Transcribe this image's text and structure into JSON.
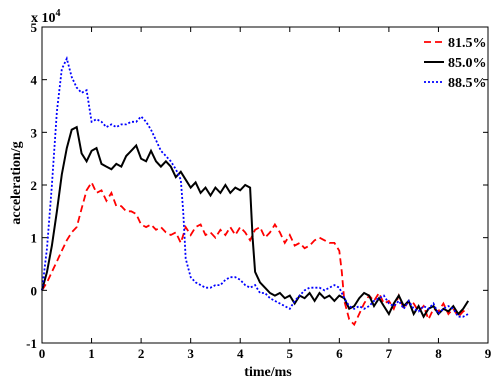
{
  "chart_data": {
    "type": "line",
    "xlabel": "time/ms",
    "ylabel": "acceleration/g",
    "multiplier": "x 10",
    "multiplier_exp": "4",
    "xlim": [
      0,
      9
    ],
    "ylim": [
      -1,
      5
    ],
    "xticks": [
      {
        "v": 0,
        "label": "0"
      },
      {
        "v": 1,
        "label": "1"
      },
      {
        "v": 2,
        "label": "2"
      },
      {
        "v": 3,
        "label": "3"
      },
      {
        "v": 4,
        "label": "4"
      },
      {
        "v": 5,
        "label": "5"
      },
      {
        "v": 6,
        "label": "6"
      },
      {
        "v": 7,
        "label": "7"
      },
      {
        "v": 8,
        "label": "8"
      },
      {
        "v": 9,
        "label": "9"
      }
    ],
    "yticks": [
      {
        "v": -1,
        "label": "-1"
      },
      {
        "v": 0,
        "label": "0"
      },
      {
        "v": 1,
        "label": "1"
      },
      {
        "v": 2,
        "label": "2"
      },
      {
        "v": 3,
        "label": "3"
      },
      {
        "v": 4,
        "label": "4"
      },
      {
        "v": 5,
        "label": "5"
      }
    ],
    "grid": false,
    "legend_position": "top-right",
    "series": [
      {
        "name": "81.5%",
        "color": "#ff0000",
        "dash": "dashed",
        "points": [
          [
            0,
            0
          ],
          [
            0.1,
            0.15
          ],
          [
            0.2,
            0.35
          ],
          [
            0.3,
            0.55
          ],
          [
            0.4,
            0.75
          ],
          [
            0.5,
            0.95
          ],
          [
            0.6,
            1.1
          ],
          [
            0.7,
            1.2
          ],
          [
            0.8,
            1.55
          ],
          [
            0.9,
            1.9
          ],
          [
            1.0,
            2.05
          ],
          [
            1.1,
            1.85
          ],
          [
            1.2,
            1.9
          ],
          [
            1.3,
            1.7
          ],
          [
            1.4,
            1.85
          ],
          [
            1.5,
            1.6
          ],
          [
            1.6,
            1.6
          ],
          [
            1.7,
            1.5
          ],
          [
            1.8,
            1.5
          ],
          [
            1.9,
            1.45
          ],
          [
            2.0,
            1.25
          ],
          [
            2.1,
            1.2
          ],
          [
            2.2,
            1.25
          ],
          [
            2.3,
            1.15
          ],
          [
            2.4,
            1.2
          ],
          [
            2.5,
            1.1
          ],
          [
            2.6,
            1.05
          ],
          [
            2.7,
            1.1
          ],
          [
            2.8,
            0.9
          ],
          [
            2.9,
            1.2
          ],
          [
            3.0,
            1.05
          ],
          [
            3.1,
            1.2
          ],
          [
            3.2,
            1.25
          ],
          [
            3.3,
            1.05
          ],
          [
            3.4,
            1.1
          ],
          [
            3.5,
            1.0
          ],
          [
            3.6,
            1.15
          ],
          [
            3.7,
            1.05
          ],
          [
            3.8,
            1.2
          ],
          [
            3.9,
            1.05
          ],
          [
            4.0,
            1.2
          ],
          [
            4.1,
            1.1
          ],
          [
            4.2,
            0.95
          ],
          [
            4.3,
            1.15
          ],
          [
            4.4,
            1.2
          ],
          [
            4.5,
            1.0
          ],
          [
            4.6,
            1.1
          ],
          [
            4.7,
            1.25
          ],
          [
            4.8,
            1.1
          ],
          [
            4.9,
            0.9
          ],
          [
            5.0,
            1.05
          ],
          [
            5.1,
            0.85
          ],
          [
            5.2,
            0.9
          ],
          [
            5.3,
            0.8
          ],
          [
            5.4,
            0.85
          ],
          [
            5.5,
            0.95
          ],
          [
            5.6,
            1.0
          ],
          [
            5.7,
            0.95
          ],
          [
            5.8,
            0.9
          ],
          [
            5.9,
            0.9
          ],
          [
            6.0,
            0.75
          ],
          [
            6.05,
            0.35
          ],
          [
            6.1,
            -0.2
          ],
          [
            6.2,
            -0.55
          ],
          [
            6.3,
            -0.65
          ],
          [
            6.4,
            -0.45
          ],
          [
            6.5,
            -0.25
          ],
          [
            6.6,
            -0.1
          ],
          [
            6.7,
            -0.2
          ],
          [
            6.8,
            -0.05
          ],
          [
            6.9,
            -0.25
          ],
          [
            7.0,
            -0.2
          ],
          [
            7.1,
            -0.35
          ],
          [
            7.2,
            -0.1
          ],
          [
            7.3,
            -0.35
          ],
          [
            7.4,
            -0.2
          ],
          [
            7.5,
            -0.25
          ],
          [
            7.6,
            -0.4
          ],
          [
            7.7,
            -0.3
          ],
          [
            7.8,
            -0.55
          ],
          [
            7.9,
            -0.35
          ],
          [
            8.0,
            -0.4
          ],
          [
            8.1,
            -0.25
          ],
          [
            8.2,
            -0.45
          ],
          [
            8.3,
            -0.35
          ],
          [
            8.4,
            -0.5
          ],
          [
            8.5,
            -0.4
          ],
          [
            8.6,
            -0.35
          ]
        ]
      },
      {
        "name": "85.0%",
        "color": "#000000",
        "dash": "solid",
        "points": [
          [
            0,
            0
          ],
          [
            0.1,
            0.35
          ],
          [
            0.2,
            0.85
          ],
          [
            0.3,
            1.5
          ],
          [
            0.4,
            2.2
          ],
          [
            0.5,
            2.7
          ],
          [
            0.6,
            3.05
          ],
          [
            0.7,
            3.1
          ],
          [
            0.8,
            2.6
          ],
          [
            0.9,
            2.45
          ],
          [
            1.0,
            2.65
          ],
          [
            1.1,
            2.7
          ],
          [
            1.2,
            2.4
          ],
          [
            1.3,
            2.35
          ],
          [
            1.4,
            2.3
          ],
          [
            1.5,
            2.4
          ],
          [
            1.6,
            2.35
          ],
          [
            1.7,
            2.55
          ],
          [
            1.8,
            2.65
          ],
          [
            1.9,
            2.75
          ],
          [
            2.0,
            2.5
          ],
          [
            2.1,
            2.45
          ],
          [
            2.2,
            2.65
          ],
          [
            2.3,
            2.45
          ],
          [
            2.4,
            2.35
          ],
          [
            2.5,
            2.45
          ],
          [
            2.6,
            2.35
          ],
          [
            2.7,
            2.15
          ],
          [
            2.8,
            2.25
          ],
          [
            2.9,
            2.1
          ],
          [
            3.0,
            1.95
          ],
          [
            3.1,
            2.05
          ],
          [
            3.2,
            1.85
          ],
          [
            3.3,
            1.95
          ],
          [
            3.4,
            1.8
          ],
          [
            3.5,
            1.95
          ],
          [
            3.6,
            1.85
          ],
          [
            3.7,
            2.0
          ],
          [
            3.8,
            1.85
          ],
          [
            3.9,
            1.95
          ],
          [
            4.0,
            1.9
          ],
          [
            4.1,
            2.0
          ],
          [
            4.2,
            1.95
          ],
          [
            4.25,
            1.0
          ],
          [
            4.3,
            0.35
          ],
          [
            4.4,
            0.15
          ],
          [
            4.5,
            0.05
          ],
          [
            4.6,
            -0.05
          ],
          [
            4.7,
            -0.1
          ],
          [
            4.8,
            -0.05
          ],
          [
            4.9,
            -0.15
          ],
          [
            5.0,
            -0.1
          ],
          [
            5.1,
            -0.25
          ],
          [
            5.2,
            -0.1
          ],
          [
            5.3,
            -0.15
          ],
          [
            5.4,
            -0.05
          ],
          [
            5.5,
            -0.2
          ],
          [
            5.6,
            -0.05
          ],
          [
            5.7,
            -0.15
          ],
          [
            5.8,
            -0.1
          ],
          [
            5.9,
            -0.2
          ],
          [
            6.0,
            -0.1
          ],
          [
            6.1,
            -0.15
          ],
          [
            6.2,
            -0.35
          ],
          [
            6.3,
            -0.3
          ],
          [
            6.4,
            -0.15
          ],
          [
            6.5,
            -0.05
          ],
          [
            6.6,
            -0.1
          ],
          [
            6.7,
            -0.3
          ],
          [
            6.8,
            -0.15
          ],
          [
            6.9,
            -0.3
          ],
          [
            7.0,
            -0.45
          ],
          [
            7.1,
            -0.25
          ],
          [
            7.2,
            -0.1
          ],
          [
            7.3,
            -0.3
          ],
          [
            7.4,
            -0.2
          ],
          [
            7.5,
            -0.45
          ],
          [
            7.6,
            -0.3
          ],
          [
            7.7,
            -0.5
          ],
          [
            7.8,
            -0.35
          ],
          [
            7.9,
            -0.3
          ],
          [
            8.0,
            -0.45
          ],
          [
            8.1,
            -0.35
          ],
          [
            8.2,
            -0.4
          ],
          [
            8.3,
            -0.3
          ],
          [
            8.4,
            -0.45
          ],
          [
            8.5,
            -0.35
          ],
          [
            8.6,
            -0.2
          ]
        ]
      },
      {
        "name": "88.5%",
        "color": "#0000ff",
        "dash": "dotted",
        "points": [
          [
            0,
            0
          ],
          [
            0.1,
            0.8
          ],
          [
            0.2,
            2.0
          ],
          [
            0.3,
            3.4
          ],
          [
            0.4,
            4.2
          ],
          [
            0.5,
            4.4
          ],
          [
            0.6,
            4.05
          ],
          [
            0.7,
            3.85
          ],
          [
            0.8,
            3.75
          ],
          [
            0.9,
            3.8
          ],
          [
            1.0,
            3.2
          ],
          [
            1.1,
            3.25
          ],
          [
            1.2,
            3.2
          ],
          [
            1.3,
            3.1
          ],
          [
            1.4,
            3.15
          ],
          [
            1.5,
            3.1
          ],
          [
            1.6,
            3.15
          ],
          [
            1.7,
            3.15
          ],
          [
            1.8,
            3.2
          ],
          [
            1.9,
            3.2
          ],
          [
            2.0,
            3.3
          ],
          [
            2.1,
            3.2
          ],
          [
            2.2,
            3.05
          ],
          [
            2.3,
            2.85
          ],
          [
            2.4,
            2.65
          ],
          [
            2.5,
            2.55
          ],
          [
            2.6,
            2.45
          ],
          [
            2.7,
            2.3
          ],
          [
            2.8,
            2.1
          ],
          [
            2.85,
            1.5
          ],
          [
            2.9,
            0.6
          ],
          [
            3.0,
            0.25
          ],
          [
            3.1,
            0.15
          ],
          [
            3.2,
            0.1
          ],
          [
            3.3,
            0.05
          ],
          [
            3.4,
            0.05
          ],
          [
            3.5,
            0.1
          ],
          [
            3.6,
            0.1
          ],
          [
            3.7,
            0.2
          ],
          [
            3.8,
            0.25
          ],
          [
            3.9,
            0.25
          ],
          [
            4.0,
            0.2
          ],
          [
            4.1,
            0.1
          ],
          [
            4.2,
            0.05
          ],
          [
            4.3,
            0.1
          ],
          [
            4.4,
            -0.05
          ],
          [
            4.5,
            -0.05
          ],
          [
            4.6,
            -0.15
          ],
          [
            4.7,
            -0.2
          ],
          [
            4.8,
            -0.25
          ],
          [
            4.9,
            -0.3
          ],
          [
            5.0,
            -0.35
          ],
          [
            5.1,
            -0.2
          ],
          [
            5.2,
            -0.1
          ],
          [
            5.3,
            0.0
          ],
          [
            5.4,
            0.05
          ],
          [
            5.5,
            0.05
          ],
          [
            5.6,
            0.05
          ],
          [
            5.7,
            0.0
          ],
          [
            5.8,
            0.05
          ],
          [
            5.9,
            0.1
          ],
          [
            6.0,
            0.05
          ],
          [
            6.1,
            -0.15
          ],
          [
            6.2,
            -0.3
          ],
          [
            6.3,
            -0.35
          ],
          [
            6.4,
            -0.3
          ],
          [
            6.5,
            -0.35
          ],
          [
            6.6,
            -0.3
          ],
          [
            6.7,
            -0.2
          ],
          [
            6.8,
            -0.15
          ],
          [
            6.9,
            -0.1
          ],
          [
            7.0,
            -0.25
          ],
          [
            7.1,
            -0.3
          ],
          [
            7.2,
            -0.2
          ],
          [
            7.3,
            -0.35
          ],
          [
            7.4,
            -0.2
          ],
          [
            7.5,
            -0.35
          ],
          [
            7.6,
            -0.4
          ],
          [
            7.7,
            -0.3
          ],
          [
            7.8,
            -0.35
          ],
          [
            7.9,
            -0.25
          ],
          [
            8.0,
            -0.45
          ],
          [
            8.1,
            -0.35
          ],
          [
            8.2,
            -0.3
          ],
          [
            8.3,
            -0.35
          ],
          [
            8.4,
            -0.5
          ],
          [
            8.5,
            -0.5
          ],
          [
            8.6,
            -0.45
          ]
        ]
      }
    ]
  }
}
